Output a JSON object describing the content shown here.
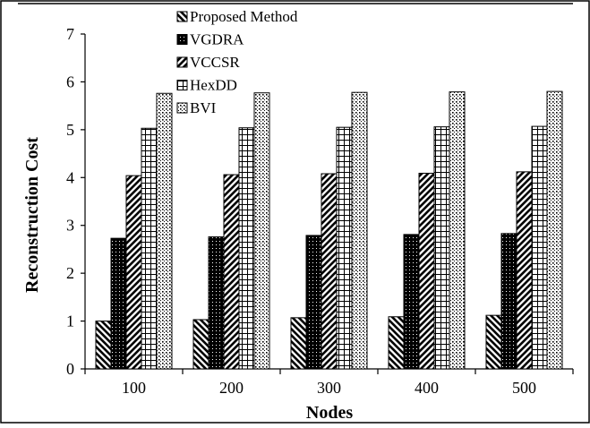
{
  "chart_data": {
    "type": "bar",
    "categories": [
      "100",
      "200",
      "300",
      "400",
      "500"
    ],
    "series": [
      {
        "name": "Proposed Method",
        "values": [
          1.0,
          1.03,
          1.07,
          1.09,
          1.12
        ],
        "pattern": "diag-left"
      },
      {
        "name": "VGDRA",
        "values": [
          2.73,
          2.76,
          2.79,
          2.81,
          2.83
        ],
        "pattern": "dots-black"
      },
      {
        "name": "VCCSR",
        "values": [
          4.04,
          4.06,
          4.08,
          4.09,
          4.12
        ],
        "pattern": "diag-right"
      },
      {
        "name": "HexDD",
        "values": [
          5.03,
          5.04,
          5.05,
          5.06,
          5.07
        ],
        "pattern": "grid"
      },
      {
        "name": "BVI",
        "values": [
          5.76,
          5.77,
          5.78,
          5.79,
          5.8
        ],
        "pattern": "dots-white"
      }
    ],
    "xlabel": "Nodes",
    "ylabel": "Reconstruction Cost",
    "ylim": [
      0,
      7
    ],
    "yticks": [
      "0",
      "1",
      "2",
      "3",
      "4",
      "5",
      "6",
      "7"
    ],
    "grid": false,
    "legend_position": "top-center"
  }
}
